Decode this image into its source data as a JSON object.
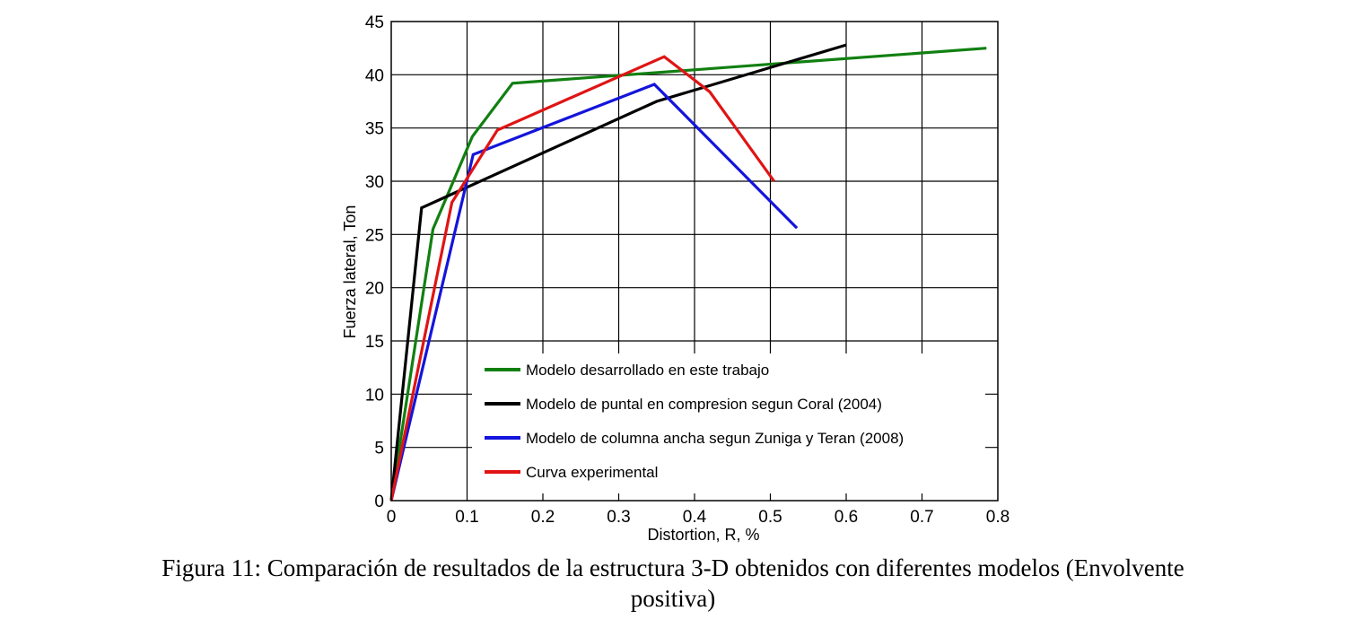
{
  "chart_data": {
    "type": "line",
    "xlabel": "Distortion, R, %",
    "ylabel": "Fuerza lateral, Ton",
    "xlim": [
      0,
      0.8
    ],
    "ylim": [
      0,
      45
    ],
    "xticks": [
      0,
      0.1,
      0.2,
      0.3,
      0.4,
      0.5,
      0.6,
      0.7,
      0.8
    ],
    "yticks": [
      0,
      5,
      10,
      15,
      20,
      25,
      30,
      35,
      40,
      45
    ],
    "grid": true,
    "legend_position": "bottom-center",
    "series": [
      {
        "name": "Modelo desarrollado en este trabajo",
        "color": "#118011",
        "points": [
          [
            0,
            0
          ],
          [
            0.055,
            25.5
          ],
          [
            0.107,
            34.2
          ],
          [
            0.16,
            39.2
          ],
          [
            0.785,
            42.5
          ]
        ]
      },
      {
        "name": "Modelo de puntal en compresion segun Coral (2004)",
        "color": "#000000",
        "points": [
          [
            0,
            0
          ],
          [
            0.04,
            27.5
          ],
          [
            0.35,
            37.5
          ],
          [
            0.6,
            42.8
          ]
        ]
      },
      {
        "name": "Modelo de columna ancha segun Zuniga y Teran (2008)",
        "color": "#1414dc",
        "points": [
          [
            0,
            0
          ],
          [
            0.108,
            32.5
          ],
          [
            0.347,
            39.1
          ],
          [
            0.535,
            25.6
          ]
        ]
      },
      {
        "name": "Curva experimental",
        "color": "#e01414",
        "points": [
          [
            0,
            0
          ],
          [
            0.08,
            28
          ],
          [
            0.14,
            34.8
          ],
          [
            0.36,
            41.7
          ],
          [
            0.42,
            38.4
          ],
          [
            0.505,
            30
          ]
        ]
      }
    ]
  },
  "caption": {
    "line1": "Figura 11: Comparación de resultados de la estructura 3-D obtenidos con diferentes modelos (Envolvente",
    "line2": "positiva)"
  }
}
